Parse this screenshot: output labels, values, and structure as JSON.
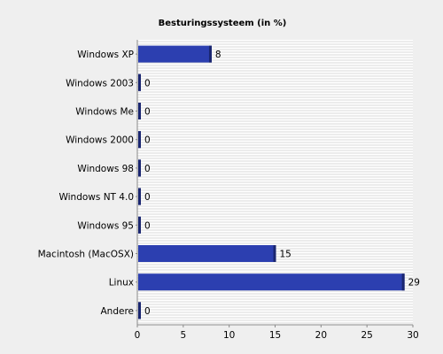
{
  "chart_data": {
    "type": "bar",
    "orientation": "horizontal",
    "title": "Besturingssysteem (in %)",
    "xlabel": "",
    "ylabel": "",
    "categories": [
      "Windows XP",
      "Windows 2003",
      "Windows Me",
      "Windows 2000",
      "Windows 98",
      "Windows NT 4.0",
      "Windows 95",
      "Macintosh (MacOSX)",
      "Linux",
      "Andere"
    ],
    "values": [
      8,
      0,
      0,
      0,
      0,
      0,
      0,
      15,
      29,
      0
    ],
    "xlim": [
      0,
      30
    ],
    "xticks": [
      0,
      5,
      10,
      15,
      20,
      25,
      30
    ],
    "grid": "horizontal-stripes",
    "legend": "none",
    "colors": {
      "background": "#efefef",
      "plot_background": "#ffffff",
      "grid_line": "#d8d8d8",
      "bar": "#2c3fb0",
      "bar_shadow": "#1a2670",
      "axis": "#8a8a8a"
    }
  }
}
